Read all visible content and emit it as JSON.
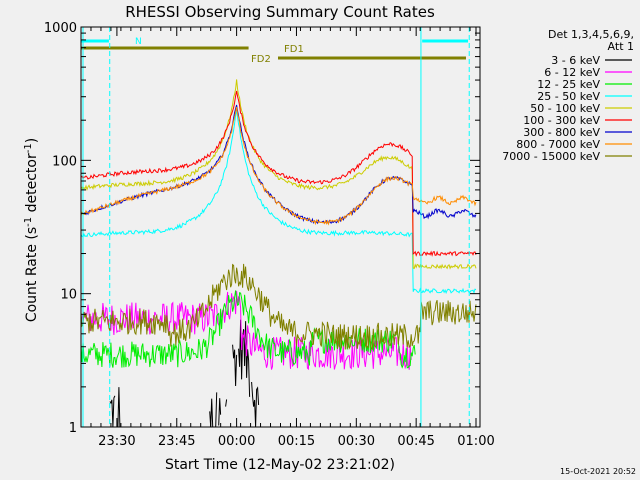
{
  "chart_data": {
    "type": "line",
    "title": "RHESSI Observing Summary Count Rates",
    "xlabel": "Start Time (12-May-02 23:21:02)",
    "ylabel": "Count Rate (s-1 detector-1)",
    "ylabel_parts": [
      "Count Rate (s",
      "-1",
      " detector",
      "-1",
      ")"
    ],
    "yscale": "log",
    "ylim": [
      1,
      1000
    ],
    "xlim_minutes": [
      0,
      100
    ],
    "x_ticks": [
      {
        "label": "23:30",
        "min": 9
      },
      {
        "label": "23:45",
        "min": 24
      },
      {
        "label": "00:00",
        "min": 39
      },
      {
        "label": "00:15",
        "min": 54
      },
      {
        "label": "00:30",
        "min": 69
      },
      {
        "label": "00:45",
        "min": 84
      },
      {
        "label": "01:00",
        "min": 99
      }
    ],
    "y_ticks": [
      {
        "label": "1",
        "value": 1
      },
      {
        "label": "10",
        "value": 10
      },
      {
        "label": "100",
        "value": 100
      },
      {
        "label": "1000",
        "value": 1000
      }
    ],
    "legend_header": [
      "Det 1,3,4,5,6,9,",
      "Att 1"
    ],
    "series": [
      {
        "name": "3 - 6 keV",
        "color": "#000000"
      },
      {
        "name": "6 - 12 keV",
        "color": "#ff00ff"
      },
      {
        "name": "12 - 25 keV",
        "color": "#00ee00"
      },
      {
        "name": "25 - 50 keV",
        "color": "#00ffff"
      },
      {
        "name": "50 - 100 keV",
        "color": "#cccc00"
      },
      {
        "name": "100 - 300 keV",
        "color": "#ff0000"
      },
      {
        "name": "300 - 800 keV",
        "color": "#0000cc"
      },
      {
        "name": "800 - 7000 keV",
        "color": "#ff8c00"
      },
      {
        "name": "7000 - 15000 keV",
        "color": "#808000"
      }
    ],
    "flags": [
      {
        "label": "N",
        "color": "#00ffff"
      },
      {
        "label": "FD1",
        "color": "#808000"
      },
      {
        "label": "FD2",
        "color": "#808000"
      }
    ],
    "timestamp": "15-Oct-2021 20:52"
  }
}
